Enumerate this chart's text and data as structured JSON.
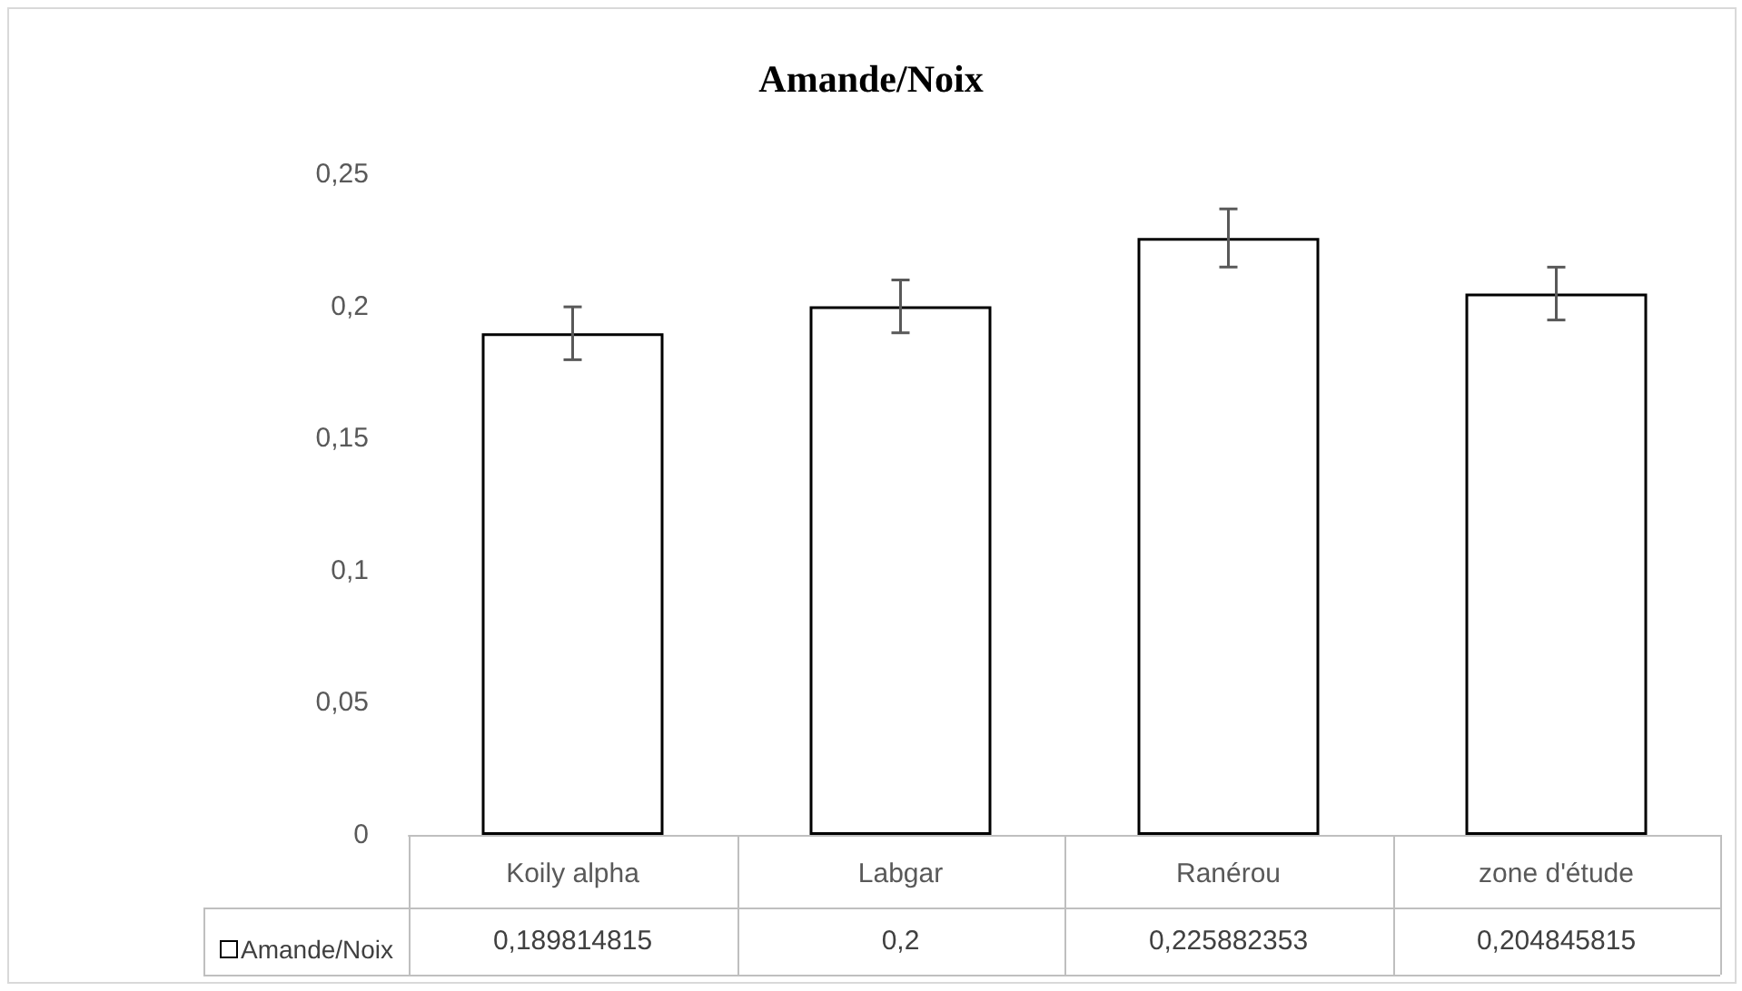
{
  "chart_data": {
    "type": "bar",
    "title": "Amande/Noix",
    "categories": [
      "Koily alpha",
      "Labgar",
      "Ranérou",
      "zone d'étude"
    ],
    "series": [
      {
        "name": "Amande/Noix",
        "color": "#ffffff",
        "values": [
          0.189814815,
          0.2,
          0.225882353,
          0.204845815
        ],
        "errors": [
          0.01,
          0.01,
          0.011,
          0.01
        ],
        "value_labels": [
          "0,189814815",
          "0,2",
          "0,225882353",
          "0,204845815"
        ]
      }
    ],
    "ylim": [
      0,
      0.25
    ],
    "yticks": [
      {
        "value": 0,
        "label": "0"
      },
      {
        "value": 0.05,
        "label": "0,05"
      },
      {
        "value": 0.1,
        "label": "0,1"
      },
      {
        "value": 0.15,
        "label": "0,15"
      },
      {
        "value": 0.2,
        "label": "0,2"
      },
      {
        "value": 0.25,
        "label": "0,25"
      }
    ],
    "grid": false,
    "legend": "bottom left"
  }
}
